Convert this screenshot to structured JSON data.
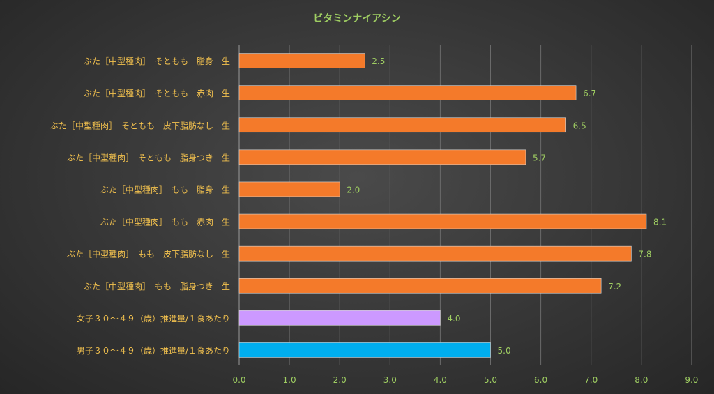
{
  "colors": {
    "text": "#9fce62",
    "category_text": "#f2c14e",
    "grid": "#6a6a6a",
    "axis": "#9a9a9a",
    "bar_default": "#f47a2a",
    "bar_female": "#cc99ff",
    "bar_male": "#00aeef"
  },
  "chart_data": {
    "type": "bar",
    "orientation": "horizontal",
    "title": "ビタミンナイアシン",
    "xlabel": "",
    "ylabel": "",
    "xlim": [
      0,
      9
    ],
    "x_ticks": [
      "0.0",
      "1.0",
      "2.0",
      "3.0",
      "4.0",
      "5.0",
      "6.0",
      "7.0",
      "8.0",
      "9.0"
    ],
    "grid": true,
    "legend": "none",
    "categories": [
      "ぶた［中型種肉］　そともも　脂身　生",
      "ぶた［中型種肉］　そともも　赤肉　生",
      "ぶた［中型種肉］　そともも　皮下脂肪なし　生",
      "ぶた［中型種肉］　そともも　脂身つき　生",
      "ぶた［中型種肉］　もも　脂身　生",
      "ぶた［中型種肉］　もも　赤肉　生",
      "ぶた［中型種肉］　もも　皮下脂肪なし　生",
      "ぶた［中型種肉］　もも　脂身つき　生",
      "女子３０～４９（歳）推進量/１食あたり",
      "男子３０～４９（歳）推進量/１食あたり"
    ],
    "values": [
      2.5,
      6.7,
      6.5,
      5.7,
      2.0,
      8.1,
      7.8,
      7.2,
      4.0,
      5.0
    ],
    "data_labels": [
      "2.5",
      "6.7",
      "6.5",
      "5.7",
      "2.0",
      "8.1",
      "7.8",
      "7.2",
      "4.0",
      "5.0"
    ],
    "bar_colors": [
      "#f47a2a",
      "#f47a2a",
      "#f47a2a",
      "#f47a2a",
      "#f47a2a",
      "#f47a2a",
      "#f47a2a",
      "#f47a2a",
      "#cc99ff",
      "#00aeef"
    ]
  }
}
